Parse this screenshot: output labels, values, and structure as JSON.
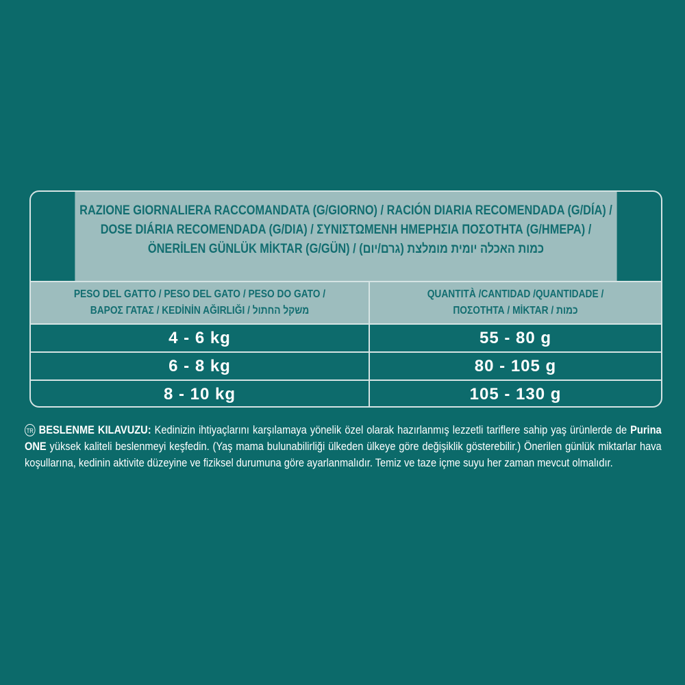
{
  "table": {
    "title_lines": [
      "RAZIONE GIORNALIERA RACCOMANDATA (G/GIORNO) / RACIÓN DIARIA RECOMENDADA (G/DÍA) /",
      "DOSE DIÁRIA RECOMENDADA (G/DIA) / ΣΥΝΙΣΤΩΜΕΝΗ ΗΜΕΡΗΣΙΑ ΠΟΣΟΤΗΤΑ (G/ΗΜΕΡΑ) /",
      "ÖNERİLEN GÜNLÜK MİKTAR (G/GÜN) / (גרם/יום) כמות האכלה יומית מומלצת"
    ],
    "col1_header": [
      "PESO DEL GATTO / PESO DEL GATO / PESO DO GATO /",
      "ΒΑΡΟΣ ΓΑΤΑΣ / KEDİNİN AĞIRLIĞI / משקל החתול"
    ],
    "col2_header": [
      "QUANTITÀ /CANTIDAD /QUANTIDADE /",
      "ΠΟΣΟΤΗΤΑ / MİKTAR / כמות"
    ],
    "rows": [
      {
        "weight": "4 - 6 kg",
        "amount": "55 - 80 g"
      },
      {
        "weight": "6 - 8 kg",
        "amount": "80 - 105 g"
      },
      {
        "weight": "8 - 10 kg",
        "amount": "105 - 130 g"
      }
    ]
  },
  "note": {
    "lang_badge": "TR",
    "heading": "BESLENME KILAVUZU:",
    "text1": " Kedinizin ihtiyaçlarını karşılamaya yönelik özel olarak hazırlanmış lezzetli tariflere sahip yaş ürünlerde de ",
    "brand": "Purina ONE",
    "text2": " yüksek kaliteli beslenmeyi keşfedin. (Yaş mama bulunabilirliği ülkeden ülkeye göre değişiklik gösterebilir.) Önerilen günlük miktarlar hava koşullarına, kedinin aktivite düzeyine ve fiziksel durumuna göre ayarlanmalıdır. Temiz ve taze içme suyu her zaman mevcut olmalıdır."
  },
  "colors": {
    "background": "#0c6a6a",
    "header_bg": "#9dbdbe",
    "header_text": "#126d70"
  }
}
